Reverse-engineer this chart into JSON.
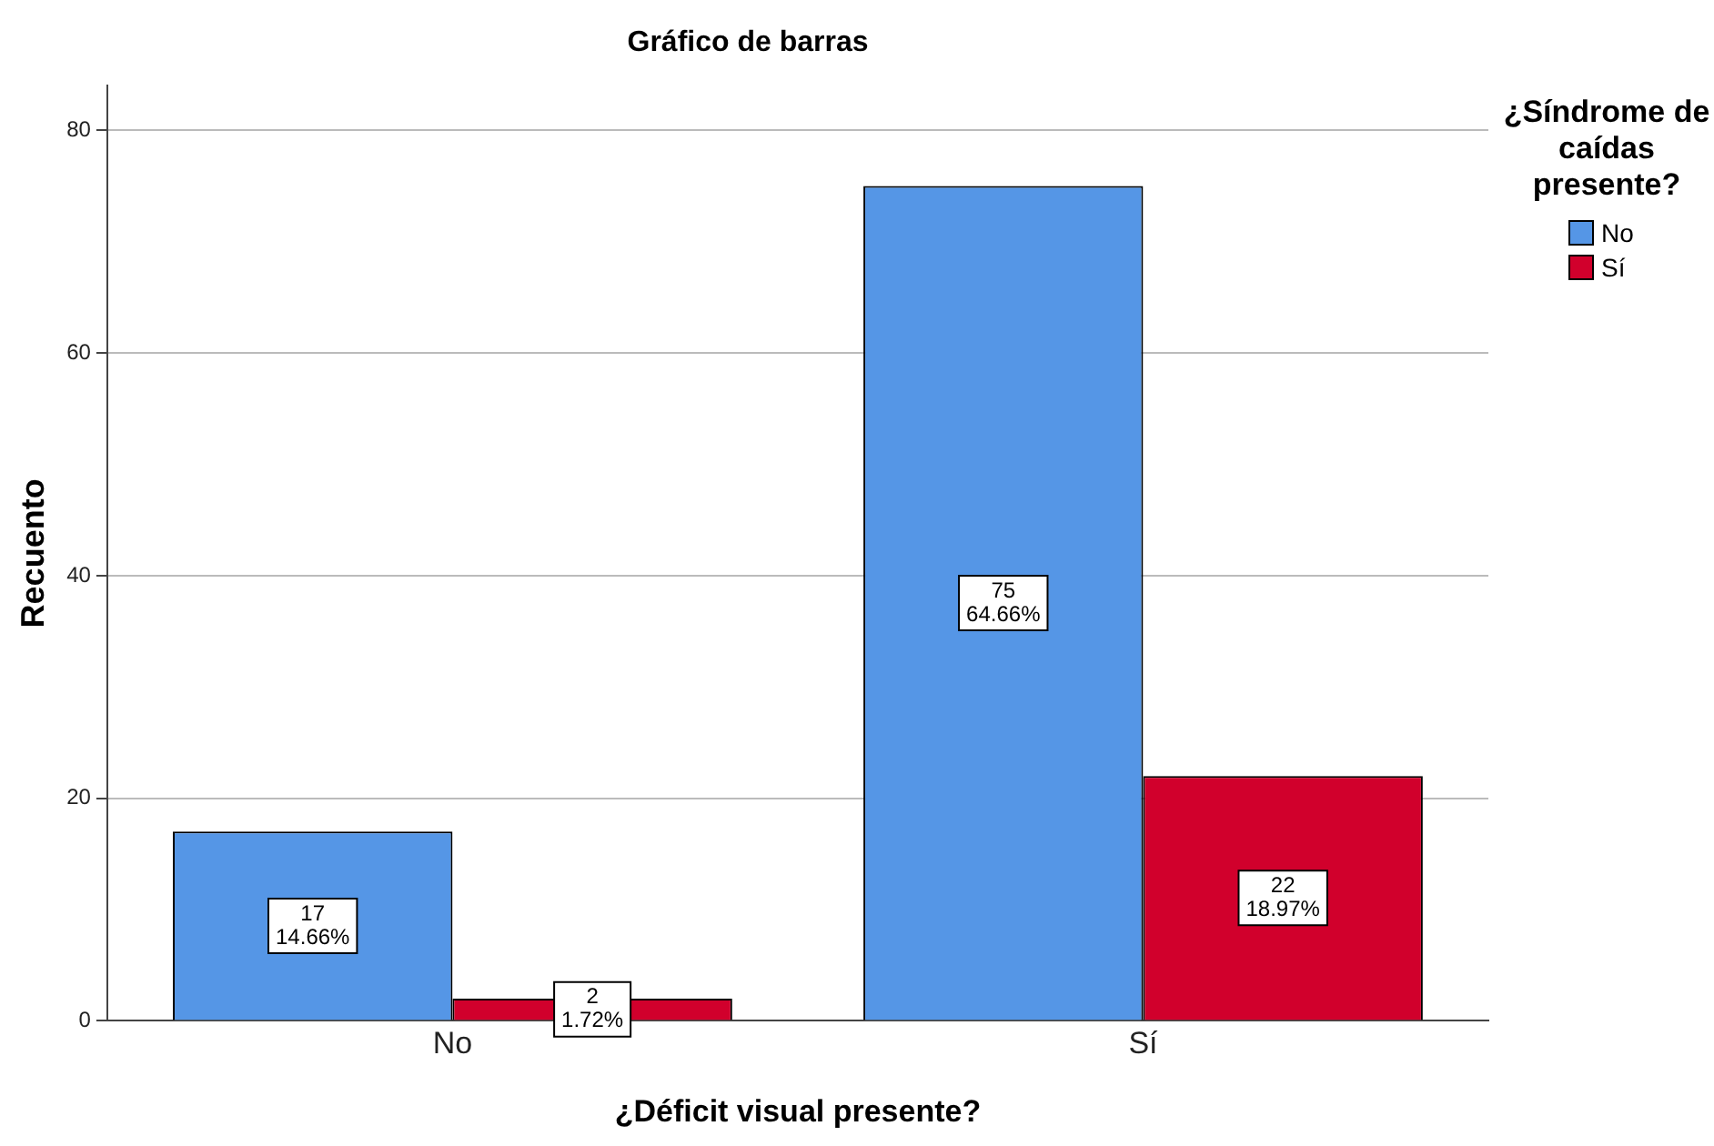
{
  "chart_data": {
    "type": "bar",
    "title": "Gráfico de barras",
    "xlabel": "¿Déficit visual presente?",
    "ylabel": "Recuento",
    "legend_title": "¿Síndrome de caídas presente?",
    "categories": [
      "No",
      "Sí"
    ],
    "series": [
      {
        "name": "No",
        "color": "#5596e6",
        "values": [
          17,
          75
        ],
        "value_labels": [
          "17\n14.66%",
          "75\n64.66%"
        ]
      },
      {
        "name": "Sí",
        "color": "#d1002c",
        "values": [
          2,
          22
        ],
        "value_labels": [
          "2\n1.72%",
          "22\n18.97%"
        ]
      }
    ],
    "ylim": [
      0,
      84
    ],
    "yticks": [
      0,
      20,
      40,
      60,
      80
    ],
    "grid": "y",
    "legend": "top right"
  }
}
